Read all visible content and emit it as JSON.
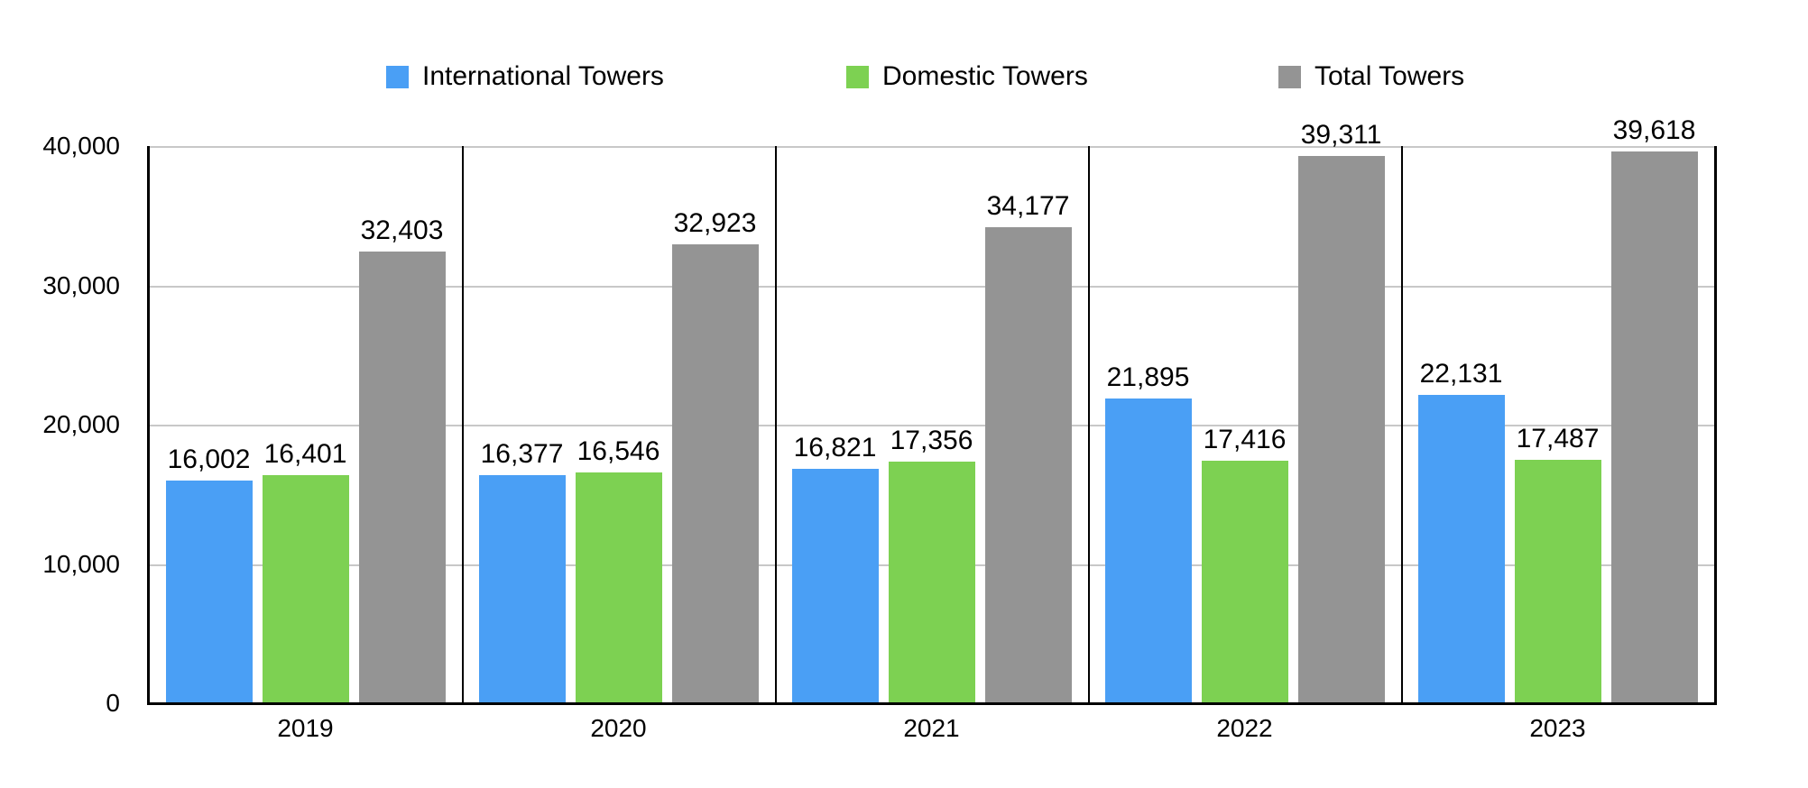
{
  "chart_data": {
    "type": "bar",
    "title": "",
    "xlabel": "",
    "ylabel": "",
    "categories": [
      "2019",
      "2020",
      "2021",
      "2022",
      "2023"
    ],
    "series": [
      {
        "name": "International Towers",
        "color": "#4A9FF5",
        "values": [
          16002,
          16377,
          16821,
          21895,
          22131
        ]
      },
      {
        "name": "Domestic Towers",
        "color": "#7DD152",
        "values": [
          16401,
          16546,
          17356,
          17416,
          17487
        ]
      },
      {
        "name": "Total Towers",
        "color": "#949494",
        "values": [
          32403,
          32923,
          34177,
          39311,
          39618
        ]
      }
    ],
    "ylim": [
      0,
      40000
    ],
    "y_tick_interval": 10000,
    "y_tick_labels": [
      "0",
      "10,000",
      "20,000",
      "30,000",
      "40,000"
    ],
    "legend_position": "top",
    "grid": "horizontal-lines",
    "value_labels": "above-bars",
    "group_separators": true,
    "colors": {
      "axis": "#000000",
      "gridline": "#C8C8C8",
      "text": "#000000",
      "background": "#FFFFFF"
    }
  }
}
